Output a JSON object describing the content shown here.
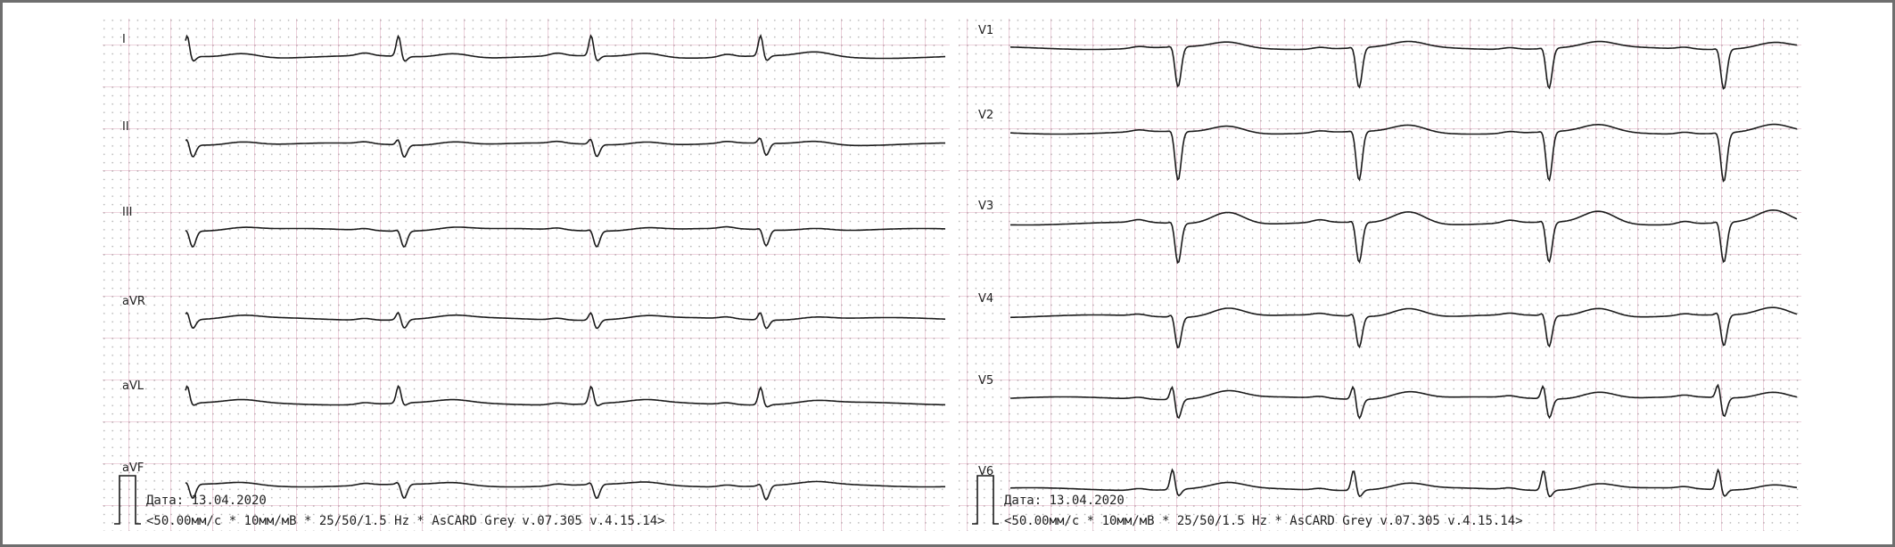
{
  "panels": [
    {
      "leads": [
        "I",
        "II",
        "III",
        "aVR",
        "aVL",
        "aVF"
      ],
      "date": "Дата: 13.04.2020",
      "settings": "<50.00мм/с * 10мм/мВ * 25/50/1.5 Hz * AsCARD Grey v.07.305 v.4.15.14>"
    },
    {
      "leads": [
        "V1",
        "V2",
        "V3",
        "V4",
        "V5",
        "V6"
      ],
      "date": "Дата: 13.04.2020",
      "settings": "<50.00мм/с * 10мм/мВ * 25/50/1.5 Hz * AsCARD Grey v.07.305 v.4.15.14>"
    }
  ]
}
